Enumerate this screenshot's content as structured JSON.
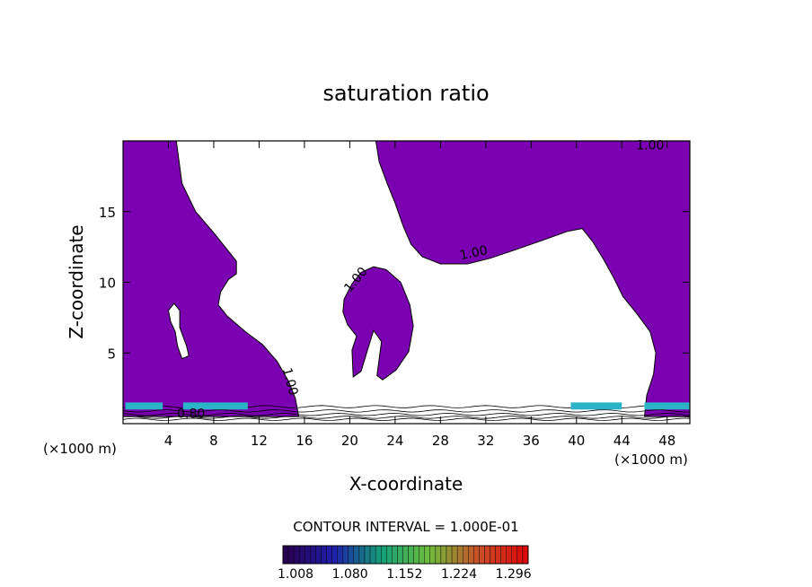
{
  "chart_data": {
    "type": "heatmap",
    "title": "saturation ratio",
    "xlabel": "X-coordinate",
    "ylabel": "Z-coordinate",
    "x_unit_left": "(×1000 m)",
    "x_unit_right": "(×1000 m)",
    "xlim": [
      0,
      50
    ],
    "ylim": [
      0,
      20
    ],
    "x_ticks": [
      4,
      8,
      12,
      16,
      20,
      24,
      28,
      32,
      36,
      40,
      44,
      48
    ],
    "y_ticks": [
      5,
      10,
      15
    ],
    "contour_labels": [
      {
        "text": "1.00",
        "x": 46.5,
        "z": 19.4,
        "rot": 0
      },
      {
        "text": "1.00",
        "x": 31.0,
        "z": 11.8,
        "rot": -12
      },
      {
        "text": "1.00",
        "x": 20.8,
        "z": 10.0,
        "rot": -50
      },
      {
        "text": "1.00",
        "x": 14.4,
        "z": 2.9,
        "rot": 75
      },
      {
        "text": "0.80",
        "x": 6.0,
        "z": 0.4,
        "rot": 0
      }
    ],
    "contour_interval_text": "CONTOUR INTERVAL = 1.000E-01",
    "colorbar": {
      "tick_labels": [
        "1.008",
        "1.080",
        "1.152",
        "1.224",
        "1.296"
      ],
      "min": 1.008,
      "max": 1.332
    },
    "fill_color": "#7a00b2",
    "supersaturated_regions": [
      {
        "name": "left-region",
        "points": [
          [
            0,
            20
          ],
          [
            4.7,
            20
          ],
          [
            5.2,
            17
          ],
          [
            6.4,
            15
          ],
          [
            8.0,
            13.5
          ],
          [
            9.3,
            12.2
          ],
          [
            10.0,
            11.5
          ],
          [
            10.0,
            10.6
          ],
          [
            9.3,
            10.2
          ],
          [
            8.6,
            9.3
          ],
          [
            8.4,
            8.4
          ],
          [
            9.2,
            7.6
          ],
          [
            10.8,
            6.5
          ],
          [
            12.3,
            5.6
          ],
          [
            13.6,
            4.4
          ],
          [
            14.6,
            3.0
          ],
          [
            15.2,
            1.8
          ],
          [
            15.5,
            0.5
          ],
          [
            0,
            0.5
          ]
        ]
      },
      {
        "name": "upper-right-region",
        "points": [
          [
            22.3,
            20
          ],
          [
            50,
            20
          ],
          [
            50,
            0.5
          ],
          [
            46,
            0.5
          ],
          [
            46.2,
            2.0
          ],
          [
            46.8,
            3.5
          ],
          [
            47.0,
            5.0
          ],
          [
            46.5,
            6.5
          ],
          [
            45.3,
            7.8
          ],
          [
            44.1,
            9.0
          ],
          [
            43.3,
            10.3
          ],
          [
            42.4,
            11.6
          ],
          [
            41.4,
            12.9
          ],
          [
            40.5,
            13.8
          ],
          [
            39.2,
            13.6
          ],
          [
            37.1,
            13.0
          ],
          [
            34.6,
            12.3
          ],
          [
            32.4,
            11.7
          ],
          [
            30.4,
            11.3
          ],
          [
            28.0,
            11.3
          ],
          [
            26.4,
            11.8
          ],
          [
            25.4,
            12.7
          ],
          [
            24.7,
            14.0
          ],
          [
            24.0,
            15.6
          ],
          [
            23.3,
            17.0
          ],
          [
            22.6,
            18.5
          ]
        ]
      },
      {
        "name": "middle-region",
        "points": [
          [
            19.5,
            8.8
          ],
          [
            20.2,
            9.9
          ],
          [
            21.0,
            10.7
          ],
          [
            22.1,
            11.1
          ],
          [
            23.2,
            10.9
          ],
          [
            24.5,
            10.0
          ],
          [
            25.3,
            8.4
          ],
          [
            25.6,
            6.9
          ],
          [
            25.2,
            5.1
          ],
          [
            24.1,
            3.8
          ],
          [
            22.9,
            3.1
          ],
          [
            22.4,
            3.4
          ],
          [
            22.8,
            5.8
          ],
          [
            22.1,
            6.6
          ],
          [
            21.6,
            5.3
          ],
          [
            21.0,
            3.7
          ],
          [
            20.3,
            3.3
          ],
          [
            20.2,
            5.2
          ],
          [
            20.6,
            6.2
          ],
          [
            19.8,
            7.0
          ],
          [
            19.4,
            7.9
          ]
        ]
      },
      {
        "name": "hole-left",
        "points": [
          [
            4.0,
            8.0
          ],
          [
            4.5,
            8.5
          ],
          [
            5.0,
            8.0
          ],
          [
            5.0,
            6.8
          ],
          [
            5.6,
            5.5
          ],
          [
            5.8,
            4.8
          ],
          [
            5.2,
            4.6
          ],
          [
            4.8,
            5.5
          ],
          [
            4.6,
            6.5
          ],
          [
            4.2,
            7.2
          ]
        ]
      }
    ]
  }
}
